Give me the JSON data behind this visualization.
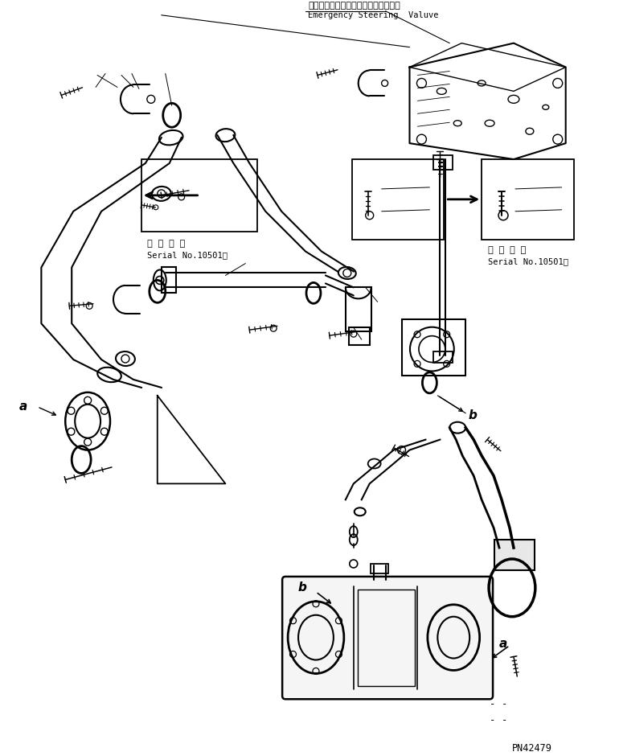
{
  "title_jp": "エマージェンシーステアリングバルブ",
  "title_en": "Emergency Steering  Valuve",
  "part_number": "PN42479",
  "serial_label_jp": "適 用 号 機",
  "serial_label_en": "Serial No.10501～",
  "bg_color": "#ffffff",
  "line_color": "#000000",
  "figsize": [
    7.7,
    9.4
  ],
  "dpi": 100
}
